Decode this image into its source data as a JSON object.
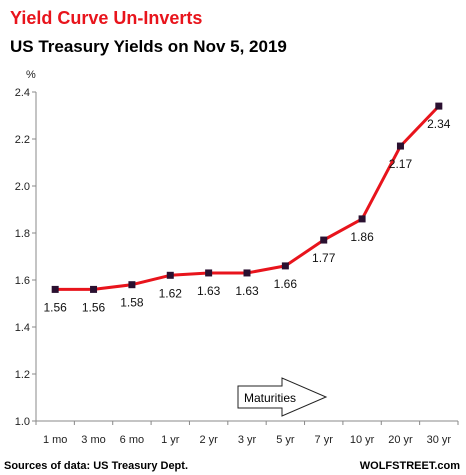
{
  "chart_data": {
    "type": "line",
    "title": "Yield Curve  Un-Inverts",
    "subtitle": "US Treasury Yields on Nov 5, 2019",
    "ylabel": "%",
    "categories": [
      "1 mo",
      "3 mo",
      "6 mo",
      "1 yr",
      "2 yr",
      "3 yr",
      "5 yr",
      "7 yr",
      "10 yr",
      "20 yr",
      "30 yr"
    ],
    "series": [
      {
        "values": [
          1.56,
          1.56,
          1.58,
          1.62,
          1.63,
          1.63,
          1.66,
          1.77,
          1.86,
          2.17,
          2.34
        ]
      }
    ],
    "data_labels": [
      "1.56",
      "1.56",
      "1.58",
      "1.62",
      "1.63",
      "1.63",
      "1.66",
      "1.77",
      "1.86",
      "2.17",
      "2.34"
    ],
    "ylim": [
      1.0,
      2.4
    ],
    "yticks": [
      "1.0",
      "1.2",
      "1.4",
      "1.6",
      "1.8",
      "2.0",
      "2.2",
      "2.4"
    ],
    "grid": false,
    "annotation": "Maturities",
    "source": "Sources of data: US Treasury Dept.",
    "brand": "WOLFSTREET.com",
    "colors": {
      "title": "#e8141c",
      "subtitle": "#000000",
      "line": "#e8141c",
      "marker": "#2a1030"
    }
  }
}
